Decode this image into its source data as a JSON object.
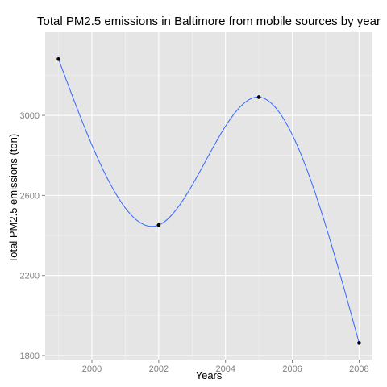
{
  "chart_data": {
    "type": "line",
    "title": "Total PM2.5 emissions in Baltimore from mobile sources by year",
    "xlabel": "Years",
    "ylabel": "Total PM2.5 emissions (ton)",
    "x": [
      1999,
      2002,
      2005,
      2008
    ],
    "series": [
      {
        "values": [
          3281,
          2452,
          3091,
          1863
        ]
      }
    ],
    "xlim": [
      1998.6,
      2008.4
    ],
    "ylim": [
      1780,
      3415
    ],
    "x_ticks": [
      2000,
      2002,
      2004,
      2006,
      2008
    ],
    "x_tick_labels": [
      "2000",
      "2002",
      "2004",
      "2006",
      "2008"
    ],
    "y_ticks": [
      1800,
      2200,
      2600,
      3000
    ],
    "y_tick_labels": [
      "1800",
      "2200",
      "2600",
      "3000"
    ],
    "grid": true,
    "smooth": true,
    "colors": {
      "panel_background": "#e5e5e5",
      "grid_major": "#ffffff",
      "grid_minor": "#f2f2f2",
      "line": "#3366ff",
      "points": "#000000",
      "tick_text": "#7f7f7f"
    }
  }
}
